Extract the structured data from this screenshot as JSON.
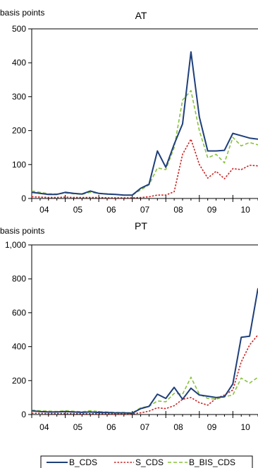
{
  "colors": {
    "B_CDS": "#1f3f7a",
    "S_CDS": "#cc2222",
    "B_BIS_CDS": "#88c23a",
    "axis": "#000000"
  },
  "chart_data": [
    {
      "type": "line",
      "title": "AT",
      "unit_label": "basis points",
      "ylim": [
        0,
        500
      ],
      "yticks": [
        0,
        100,
        200,
        300,
        400,
        500
      ],
      "ytick_labels": [
        "0",
        "100",
        "200",
        "300",
        "400",
        "500"
      ],
      "xlim": [
        2004.0,
        2010.75
      ],
      "year_labels": [
        "04",
        "05",
        "06",
        "07",
        "08",
        "09",
        "10"
      ],
      "x": [
        2004.0,
        2004.25,
        2004.5,
        2004.75,
        2005.0,
        2005.25,
        2005.5,
        2005.75,
        2006.0,
        2006.25,
        2006.5,
        2006.75,
        2007.0,
        2007.25,
        2007.5,
        2007.75,
        2008.0,
        2008.25,
        2008.5,
        2008.75,
        2009.0,
        2009.25,
        2009.5,
        2009.75,
        2010.0,
        2010.25,
        2010.5,
        2010.75
      ],
      "series": [
        {
          "name": "B_CDS",
          "style": "solid",
          "values": [
            18,
            15,
            12,
            12,
            18,
            15,
            13,
            22,
            15,
            13,
            12,
            10,
            10,
            30,
            42,
            140,
            92,
            160,
            220,
            432,
            240,
            140,
            140,
            142,
            192,
            185,
            178,
            175
          ]
        },
        {
          "name": "S_CDS",
          "style": "dotted",
          "values": [
            5,
            4,
            3,
            3,
            4,
            3,
            3,
            3,
            3,
            2,
            2,
            2,
            2,
            3,
            5,
            10,
            10,
            20,
            130,
            175,
            100,
            60,
            80,
            58,
            88,
            85,
            98,
            96
          ]
        },
        {
          "name": "B_BIS_CDS",
          "style": "dashed",
          "values": [
            22,
            18,
            14,
            13,
            16,
            14,
            12,
            18,
            15,
            14,
            12,
            10,
            10,
            25,
            40,
            90,
            85,
            150,
            290,
            318,
            200,
            120,
            130,
            105,
            180,
            155,
            165,
            158
          ]
        }
      ]
    },
    {
      "type": "line",
      "title": "PT",
      "unit_label": "basis points",
      "ylim": [
        0,
        1000
      ],
      "yticks": [
        0,
        200,
        400,
        600,
        800,
        1000
      ],
      "ytick_labels": [
        "0",
        "200",
        "400",
        "600",
        "800",
        "1,000"
      ],
      "xlim": [
        2004.0,
        2010.75
      ],
      "year_labels": [
        "04",
        "05",
        "06",
        "07",
        "08",
        "09",
        "10"
      ],
      "x": [
        2004.0,
        2004.25,
        2004.5,
        2004.75,
        2005.0,
        2005.25,
        2005.5,
        2005.75,
        2006.0,
        2006.25,
        2006.5,
        2006.75,
        2007.0,
        2007.25,
        2007.5,
        2007.75,
        2008.0,
        2008.25,
        2008.5,
        2008.75,
        2009.0,
        2009.25,
        2009.5,
        2009.75,
        2010.0,
        2010.25,
        2010.5,
        2010.75
      ],
      "series": [
        {
          "name": "B_CDS",
          "style": "solid",
          "values": [
            22,
            18,
            15,
            15,
            18,
            15,
            13,
            15,
            12,
            12,
            10,
            10,
            8,
            35,
            48,
            120,
            95,
            160,
            90,
            155,
            115,
            108,
            100,
            105,
            180,
            455,
            462,
            745
          ]
        },
        {
          "name": "S_CDS",
          "style": "dotted",
          "values": [
            8,
            7,
            6,
            6,
            6,
            6,
            5,
            5,
            5,
            5,
            4,
            4,
            4,
            10,
            20,
            40,
            35,
            52,
            90,
            100,
            70,
            55,
            95,
            115,
            145,
            310,
            410,
            470
          ]
        },
        {
          "name": "B_BIS_CDS",
          "style": "dashed",
          "values": [
            26,
            22,
            20,
            18,
            22,
            19,
            16,
            22,
            18,
            15,
            12,
            12,
            10,
            40,
            48,
            80,
            75,
            125,
            120,
            220,
            120,
            95,
            90,
            105,
            115,
            215,
            185,
            220
          ]
        }
      ]
    }
  ],
  "legend": {
    "items": [
      {
        "name": "B_CDS",
        "style": "solid"
      },
      {
        "name": "S_CDS",
        "style": "dotted"
      },
      {
        "name": "B_BIS_CDS",
        "style": "dashed"
      }
    ]
  }
}
